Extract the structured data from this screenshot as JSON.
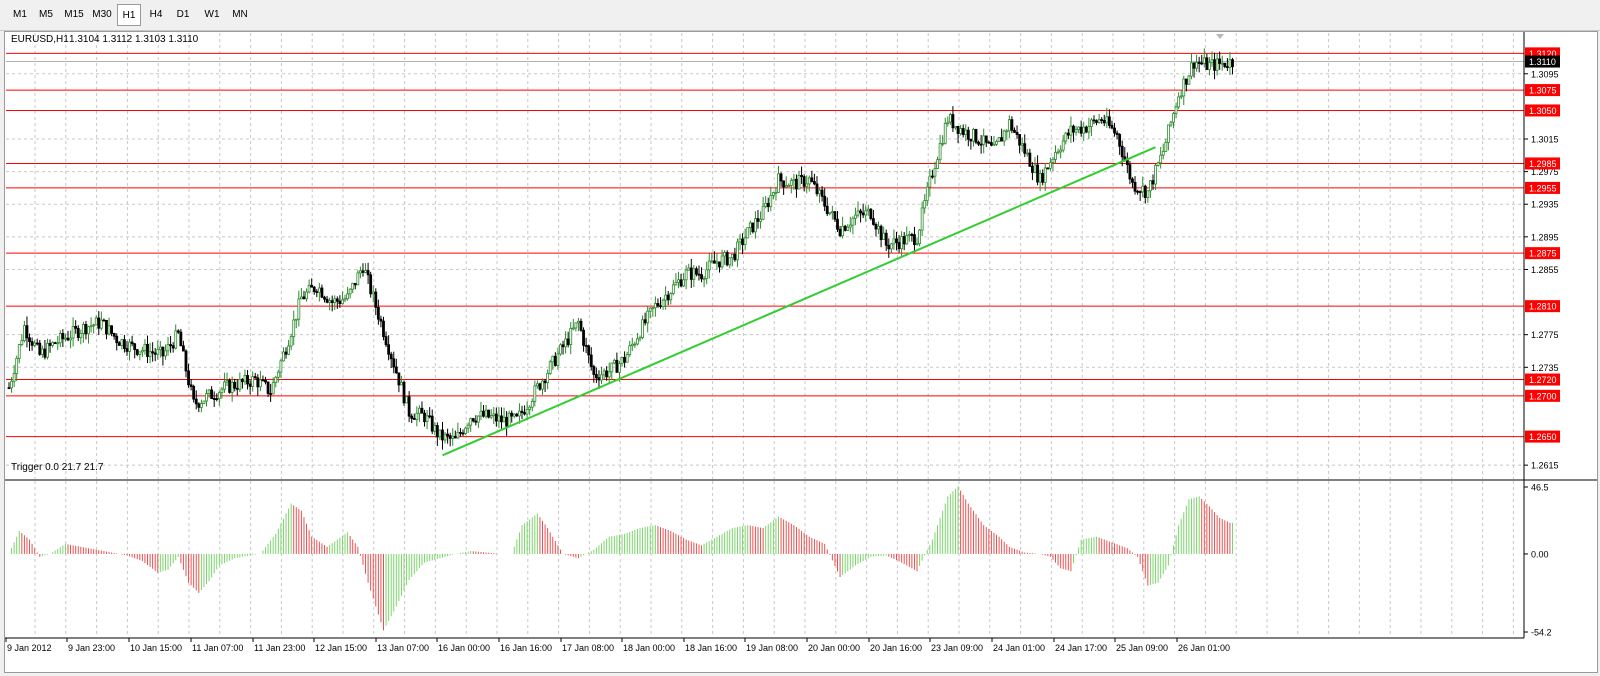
{
  "toolbar": {
    "timeframes": [
      "M1",
      "M5",
      "M15",
      "M30",
      "H1",
      "H4",
      "D1",
      "W1",
      "MN"
    ],
    "active": "H1"
  },
  "symbol_line": {
    "symbol": "EURUSD,H1",
    "ohlc": "1.3104 1.3112 1.3103 1.3110"
  },
  "indicator_line": "Trigger 0.0 21.7 21.7",
  "colors": {
    "bull": "#2e8b2e",
    "bear": "#000000",
    "level_line": "#ff0000",
    "trendline": "#32cd32",
    "hist_up": "#7bd56b",
    "hist_down": "#e85050",
    "grid": "#c8c8c8"
  },
  "chart_data": [
    {
      "type": "candlestick",
      "title": "EURUSD,H1",
      "ylim": [
        1.2598,
        1.3145
      ],
      "price_ticks": [
        "1.3095",
        "1.3015",
        "1.2975",
        "1.2935",
        "1.2895",
        "1.2855",
        "1.2775",
        "1.2735",
        "1.2615"
      ],
      "horizontal_levels": [
        "1.3120",
        "1.3075",
        "1.3050",
        "1.2985",
        "1.2955",
        "1.2875",
        "1.2810",
        "1.2720",
        "1.2700",
        "1.2650"
      ],
      "current_price": "1.3110",
      "x_labels": [
        "9 Jan 2012",
        "9 Jan 23:00",
        "10 Jan 15:00",
        "11 Jan 07:00",
        "11 Jan 23:00",
        "12 Jan 15:00",
        "13 Jan 07:00",
        "16 Jan 00:00",
        "16 Jan 16:00",
        "17 Jan 08:00",
        "18 Jan 00:00",
        "18 Jan 16:00",
        "19 Jan 08:00",
        "20 Jan 00:00",
        "20 Jan 16:00",
        "23 Jan 09:00",
        "24 Jan 01:00",
        "24 Jan 17:00",
        "25 Jan 09:00",
        "26 Jan 01:00"
      ],
      "close_path": [
        [
          0,
          1.271
        ],
        [
          6,
          1.2785
        ],
        [
          12,
          1.275
        ],
        [
          18,
          1.2765
        ],
        [
          24,
          1.2775
        ],
        [
          30,
          1.2785
        ],
        [
          36,
          1.279
        ],
        [
          42,
          1.277
        ],
        [
          48,
          1.276
        ],
        [
          54,
          1.2755
        ],
        [
          60,
          1.275
        ],
        [
          66,
          1.2775
        ],
        [
          72,
          1.269
        ],
        [
          78,
          1.27
        ],
        [
          84,
          1.271
        ],
        [
          90,
          1.2715
        ],
        [
          96,
          1.272
        ],
        [
          102,
          1.2705
        ],
        [
          108,
          1.276
        ],
        [
          114,
          1.282
        ],
        [
          120,
          1.2835
        ],
        [
          126,
          1.2815
        ],
        [
          132,
          1.282
        ],
        [
          138,
          1.286
        ],
        [
          144,
          1.28
        ],
        [
          150,
          1.274
        ],
        [
          156,
          1.268
        ],
        [
          162,
          1.2675
        ],
        [
          168,
          1.265
        ],
        [
          174,
          1.2645
        ],
        [
          180,
          1.2675
        ],
        [
          186,
          1.2675
        ],
        [
          192,
          1.267
        ],
        [
          198,
          1.267
        ],
        [
          204,
          1.27
        ],
        [
          210,
          1.273
        ],
        [
          216,
          1.276
        ],
        [
          222,
          1.279
        ],
        [
          228,
          1.2725
        ],
        [
          234,
          1.273
        ],
        [
          240,
          1.2745
        ],
        [
          246,
          1.278
        ],
        [
          252,
          1.281
        ],
        [
          258,
          1.283
        ],
        [
          264,
          1.285
        ],
        [
          270,
          1.285
        ],
        [
          276,
          1.2865
        ],
        [
          282,
          1.287
        ],
        [
          288,
          1.29
        ],
        [
          294,
          1.2925
        ],
        [
          300,
          1.2965
        ],
        [
          306,
          1.296
        ],
        [
          312,
          1.2965
        ],
        [
          318,
          1.2935
        ],
        [
          324,
          1.2905
        ],
        [
          330,
          1.292
        ],
        [
          336,
          1.2925
        ],
        [
          342,
          1.2885
        ],
        [
          348,
          1.289
        ],
        [
          354,
          1.2895
        ],
        [
          360,
          1.2975
        ],
        [
          366,
          1.304
        ],
        [
          372,
          1.3025
        ],
        [
          378,
          1.3015
        ],
        [
          384,
          1.3
        ],
        [
          390,
          1.3035
        ],
        [
          396,
          1.3
        ],
        [
          402,
          1.2965
        ],
        [
          408,
          1.3
        ],
        [
          414,
          1.3025
        ],
        [
          420,
          1.303
        ],
        [
          426,
          1.304
        ],
        [
          432,
          1.302
        ],
        [
          438,
          1.296
        ],
        [
          444,
          1.295
        ],
        [
          450,
          1.3
        ],
        [
          456,
          1.307
        ],
        [
          462,
          1.311
        ],
        [
          468,
          1.3105
        ],
        [
          474,
          1.3108
        ],
        [
          477,
          1.311
        ]
      ],
      "trendline": [
        [
          169,
          1.2627
        ],
        [
          447,
          1.3005
        ]
      ]
    },
    {
      "type": "histogram",
      "title": "Trigger",
      "values": [
        "0.0",
        "21.7",
        "21.7"
      ],
      "ylim": [
        -54.2,
        46.5
      ],
      "ticks": [
        "46.5",
        "0.00",
        "-54.2"
      ],
      "path": [
        [
          0,
          0
        ],
        [
          4,
          16
        ],
        [
          8,
          10
        ],
        [
          12,
          -2
        ],
        [
          16,
          0
        ],
        [
          22,
          7
        ],
        [
          28,
          5
        ],
        [
          34,
          3
        ],
        [
          40,
          1
        ],
        [
          46,
          -1
        ],
        [
          52,
          -5
        ],
        [
          58,
          -13
        ],
        [
          62,
          -11
        ],
        [
          66,
          -2
        ],
        [
          70,
          -20
        ],
        [
          74,
          -27
        ],
        [
          78,
          -19
        ],
        [
          82,
          -8
        ],
        [
          88,
          -3
        ],
        [
          94,
          -1
        ],
        [
          98,
          0
        ],
        [
          104,
          14
        ],
        [
          110,
          35
        ],
        [
          114,
          30
        ],
        [
          118,
          12
        ],
        [
          124,
          5
        ],
        [
          128,
          10
        ],
        [
          132,
          15
        ],
        [
          136,
          5
        ],
        [
          140,
          -20
        ],
        [
          146,
          -53
        ],
        [
          150,
          -40
        ],
        [
          156,
          -18
        ],
        [
          162,
          -6
        ],
        [
          168,
          -3
        ],
        [
          174,
          0
        ],
        [
          180,
          2
        ],
        [
          186,
          1
        ],
        [
          192,
          0
        ],
        [
          196,
          0
        ],
        [
          200,
          20
        ],
        [
          206,
          28
        ],
        [
          210,
          18
        ],
        [
          216,
          0
        ],
        [
          222,
          -3
        ],
        [
          228,
          3
        ],
        [
          234,
          12
        ],
        [
          240,
          14
        ],
        [
          246,
          18
        ],
        [
          252,
          20
        ],
        [
          258,
          16
        ],
        [
          264,
          10
        ],
        [
          270,
          6
        ],
        [
          276,
          12
        ],
        [
          282,
          18
        ],
        [
          288,
          20
        ],
        [
          294,
          18
        ],
        [
          300,
          26
        ],
        [
          306,
          20
        ],
        [
          312,
          12
        ],
        [
          318,
          7
        ],
        [
          324,
          -16
        ],
        [
          330,
          -8
        ],
        [
          336,
          -2
        ],
        [
          342,
          -1
        ],
        [
          348,
          -6
        ],
        [
          354,
          -12
        ],
        [
          360,
          10
        ],
        [
          366,
          40
        ],
        [
          370,
          47
        ],
        [
          374,
          35
        ],
        [
          380,
          20
        ],
        [
          386,
          12
        ],
        [
          390,
          5
        ],
        [
          396,
          1
        ],
        [
          402,
          0
        ],
        [
          406,
          -2
        ],
        [
          410,
          -10
        ],
        [
          414,
          -12
        ],
        [
          418,
          10
        ],
        [
          424,
          12
        ],
        [
          430,
          8
        ],
        [
          436,
          4
        ],
        [
          440,
          -2
        ],
        [
          444,
          -22
        ],
        [
          448,
          -20
        ],
        [
          452,
          -8
        ],
        [
          456,
          20
        ],
        [
          460,
          38
        ],
        [
          464,
          40
        ],
        [
          468,
          33
        ],
        [
          472,
          25
        ],
        [
          476,
          21.7
        ]
      ]
    }
  ]
}
